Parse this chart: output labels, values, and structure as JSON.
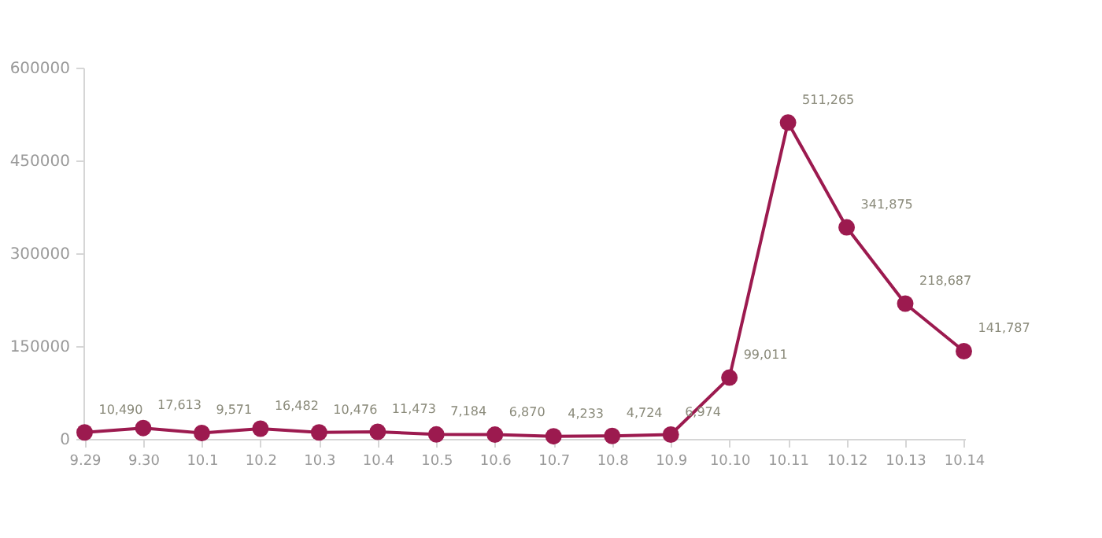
{
  "chart_data": {
    "type": "line",
    "categories": [
      "9.29",
      "9.30",
      "10.1",
      "10.2",
      "10.3",
      "10.4",
      "10.5",
      "10.6",
      "10.7",
      "10.8",
      "10.9",
      "10.10",
      "10.11",
      "10.12",
      "10.13",
      "10.14"
    ],
    "series": [
      {
        "color": "#9c1a4f",
        "values": [
          10490,
          17613,
          9571,
          16482,
          10476,
          11473,
          7184,
          6870,
          4233,
          4724,
          6974,
          99011,
          511265,
          341875,
          218687,
          141787
        ],
        "value_labels": [
          "10,490",
          "17,613",
          "9,571",
          "16,482",
          "10,476",
          "11,473",
          "7,184",
          "6,870",
          "4,233",
          "4,724",
          "6,974",
          "99,011",
          "511,265",
          "341,875",
          "218,687",
          "141,787"
        ]
      }
    ],
    "ylim": [
      0,
      600000
    ],
    "yticks": [
      0,
      150000,
      300000,
      450000,
      600000
    ],
    "grid": false,
    "legend": false,
    "marker": "circle",
    "line_style": "solid"
  }
}
